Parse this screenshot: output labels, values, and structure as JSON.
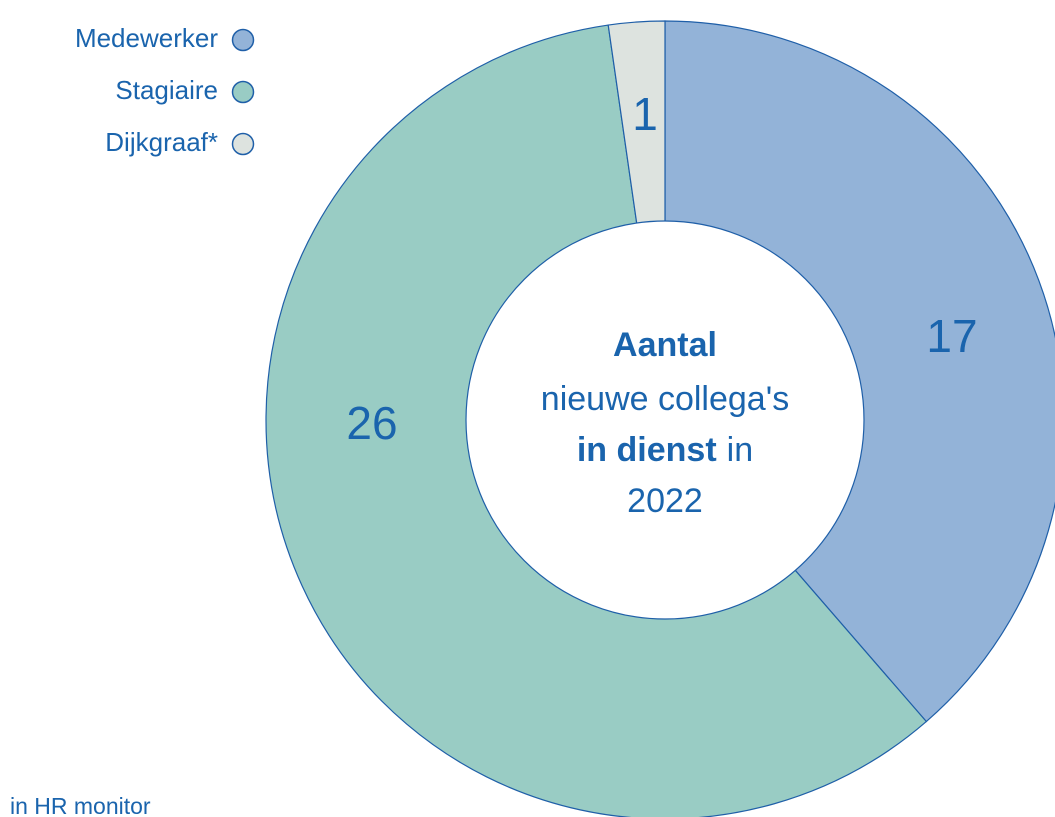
{
  "chart_data": {
    "type": "donut",
    "categories": [
      "Medewerker",
      "Stagiaire",
      "Dijkgraaf*"
    ],
    "values": [
      17,
      26,
      1
    ],
    "colors": [
      "#93b3d8",
      "#99ccc4",
      "#dde3df"
    ],
    "center_label": {
      "line1": "Aantal",
      "line2": "nieuwe collega's",
      "line3_bold": "in dienst",
      "line3_rest": "in",
      "line4": "2022"
    },
    "note": "in HR monitor",
    "legend": "top-left"
  }
}
